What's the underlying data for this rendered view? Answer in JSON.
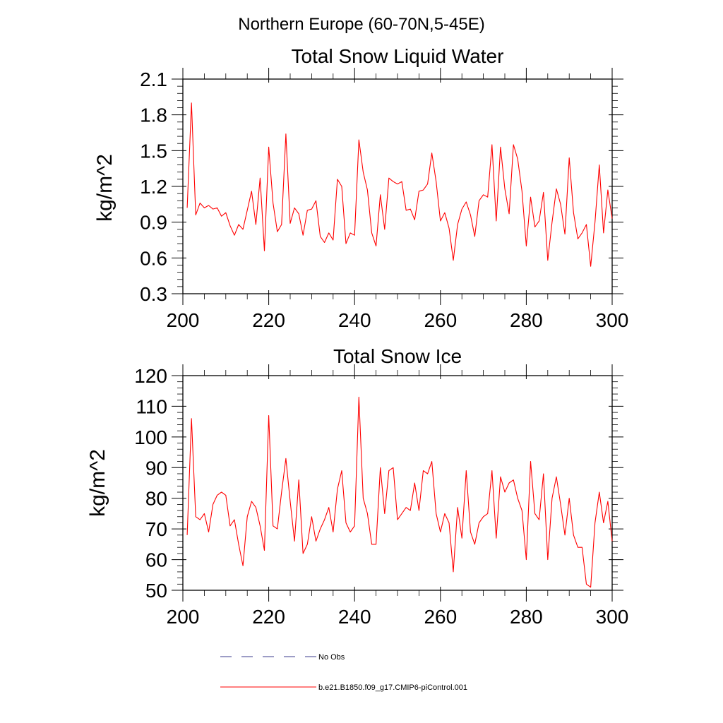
{
  "page_title": "Northern Europe (60-70N,5-45E)",
  "legend": [
    {
      "label": "No Obs",
      "color": "#3b3b8c",
      "style": "dashed"
    },
    {
      "label": "b.e21.B1850.f09_g17.CMIP6-piControl.001",
      "color": "#ff0000",
      "style": "solid"
    }
  ],
  "chart_data": [
    {
      "type": "line",
      "title": "Total Snow Liquid Water",
      "xlabel": "",
      "ylabel": "kg/m^2",
      "xlim": [
        200,
        300
      ],
      "ylim": [
        0.3,
        2.1
      ],
      "xticks": [
        200,
        220,
        240,
        260,
        280,
        300
      ],
      "xtick_labels": [
        "200",
        "220",
        "240",
        "260",
        "280",
        "300"
      ],
      "yticks": [
        0.3,
        0.6,
        0.9,
        1.2,
        1.5,
        1.8,
        2.1
      ],
      "ytick_labels": [
        "0.3",
        "0.6",
        "0.9",
        "1.2",
        "1.5",
        "1.8",
        "2.1"
      ],
      "grid": false,
      "series": [
        {
          "color": "#ff0000",
          "x": [
            201,
            202,
            203,
            204,
            205,
            206,
            207,
            208,
            209,
            210,
            211,
            212,
            213,
            214,
            215,
            216,
            217,
            218,
            219,
            220,
            221,
            222,
            223,
            224,
            225,
            226,
            227,
            228,
            229,
            230,
            231,
            232,
            233,
            234,
            235,
            236,
            237,
            238,
            239,
            240,
            241,
            242,
            243,
            244,
            245,
            246,
            247,
            248,
            249,
            250,
            251,
            252,
            253,
            254,
            255,
            256,
            257,
            258,
            259,
            260,
            261,
            262,
            263,
            264,
            265,
            266,
            267,
            268,
            269,
            270,
            271,
            272,
            273,
            274,
            275,
            276,
            277,
            278,
            279,
            280,
            281,
            282,
            283,
            284,
            285,
            286,
            287,
            288,
            289,
            290,
            291,
            292,
            293,
            294,
            295,
            296,
            297,
            298,
            299,
            300
          ],
          "values": [
            1.02,
            1.9,
            0.96,
            1.06,
            1.02,
            1.04,
            1.01,
            1.02,
            0.95,
            0.98,
            0.87,
            0.79,
            0.88,
            0.84,
            1.0,
            1.16,
            0.88,
            1.27,
            0.66,
            1.53,
            1.06,
            0.82,
            0.88,
            1.64,
            0.89,
            1.02,
            0.97,
            0.79,
            1.0,
            1.01,
            1.08,
            0.78,
            0.73,
            0.81,
            0.75,
            1.26,
            1.2,
            0.72,
            0.81,
            0.79,
            1.59,
            1.32,
            1.17,
            0.81,
            0.7,
            1.13,
            0.84,
            1.27,
            1.24,
            1.22,
            1.24,
            1.0,
            1.01,
            0.92,
            1.16,
            1.17,
            1.22,
            1.48,
            1.24,
            0.91,
            0.98,
            0.85,
            0.58,
            0.88,
            1.01,
            1.07,
            0.96,
            0.78,
            1.08,
            1.13,
            1.11,
            1.55,
            0.91,
            1.53,
            1.18,
            0.97,
            1.55,
            1.43,
            1.16,
            0.7,
            1.11,
            0.86,
            0.91,
            1.15,
            0.58,
            0.9,
            1.18,
            1.05,
            0.8,
            1.44,
            0.98,
            0.76,
            0.81,
            0.88,
            0.53,
            0.9,
            1.38,
            0.81,
            1.17,
            0.93
          ]
        }
      ]
    },
    {
      "type": "line",
      "title": "Total Snow Ice",
      "xlabel": "",
      "ylabel": "kg/m^2",
      "xlim": [
        200,
        300
      ],
      "ylim": [
        50,
        120
      ],
      "xticks": [
        200,
        220,
        240,
        260,
        280,
        300
      ],
      "xtick_labels": [
        "200",
        "220",
        "240",
        "260",
        "280",
        "300"
      ],
      "yticks": [
        50,
        60,
        70,
        80,
        90,
        100,
        110,
        120
      ],
      "ytick_labels": [
        "50",
        "60",
        "70",
        "80",
        "90",
        "100",
        "110",
        "120"
      ],
      "grid": false,
      "series": [
        {
          "color": "#ff0000",
          "x": [
            201,
            202,
            203,
            204,
            205,
            206,
            207,
            208,
            209,
            210,
            211,
            212,
            213,
            214,
            215,
            216,
            217,
            218,
            219,
            220,
            221,
            222,
            223,
            224,
            225,
            226,
            227,
            228,
            229,
            230,
            231,
            232,
            233,
            234,
            235,
            236,
            237,
            238,
            239,
            240,
            241,
            242,
            243,
            244,
            245,
            246,
            247,
            248,
            249,
            250,
            251,
            252,
            253,
            254,
            255,
            256,
            257,
            258,
            259,
            260,
            261,
            262,
            263,
            264,
            265,
            266,
            267,
            268,
            269,
            270,
            271,
            272,
            273,
            274,
            275,
            276,
            277,
            278,
            279,
            280,
            281,
            282,
            283,
            284,
            285,
            286,
            287,
            288,
            289,
            290,
            291,
            292,
            293,
            294,
            295,
            296,
            297,
            298,
            299,
            300
          ],
          "values": [
            68,
            106,
            74,
            73,
            75,
            69,
            78,
            81,
            82,
            81,
            71,
            73,
            65,
            58,
            74,
            79,
            77,
            71,
            63,
            107,
            71,
            70,
            82,
            93,
            79,
            66,
            86,
            62,
            65,
            74,
            66,
            70,
            73,
            77,
            69,
            83,
            89,
            72,
            69,
            71,
            113,
            80,
            75,
            65,
            65,
            90,
            75,
            89,
            90,
            73,
            75,
            77,
            76,
            85,
            76,
            89,
            88,
            92,
            75,
            69,
            75,
            72,
            56,
            77,
            67,
            89,
            69,
            65,
            72,
            74,
            75,
            89,
            67,
            87,
            82,
            85,
            86,
            80,
            76,
            60,
            92,
            75,
            73,
            88,
            60,
            80,
            87,
            78,
            68,
            80,
            68,
            64,
            64,
            52,
            51,
            72,
            82,
            72,
            79,
            66
          ]
        }
      ]
    }
  ]
}
